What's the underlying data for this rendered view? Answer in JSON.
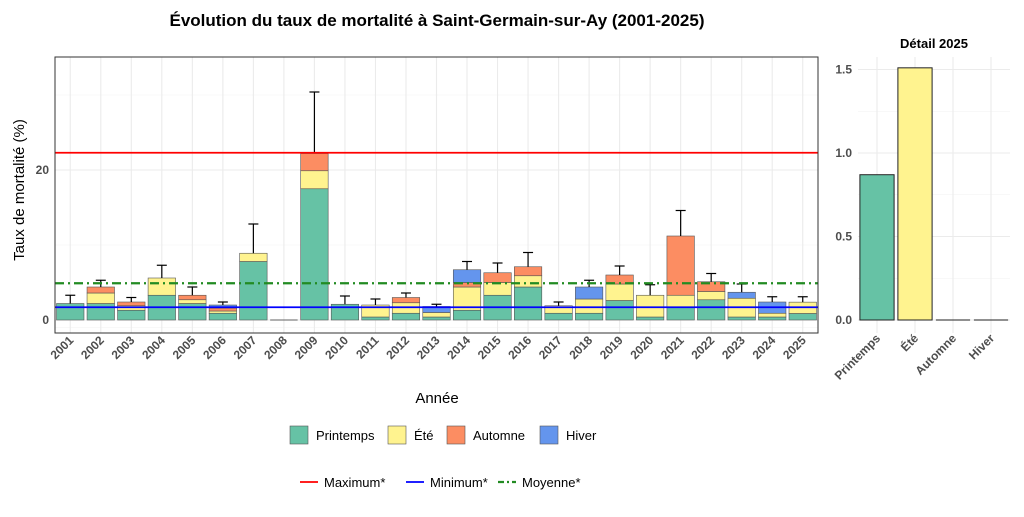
{
  "chart_data": [
    {
      "type": "bar",
      "stacked": true,
      "title": "Évolution du taux de mortalité à Saint-Germain-sur-Ay (2001-2025)",
      "xlabel": "Année",
      "ylabel": "Taux de mortalité (%)",
      "ylim": [
        -1.7,
        35
      ],
      "yticks": [
        0,
        20
      ],
      "grid": true,
      "categories": [
        "2001",
        "2002",
        "2003",
        "2004",
        "2005",
        "2006",
        "2007",
        "2008",
        "2009",
        "2010",
        "2011",
        "2012",
        "2013",
        "2014",
        "2015",
        "2016",
        "2017",
        "2018",
        "2019",
        "2020",
        "2021",
        "2022",
        "2023",
        "2024",
        "2025"
      ],
      "series": [
        {
          "name": "Printemps",
          "color": "#66c2a5",
          "values": [
            2.2,
            2.2,
            1.3,
            3.3,
            2.2,
            0.9,
            7.8,
            0,
            17.5,
            2.1,
            0.4,
            0.9,
            0.4,
            1.3,
            3.3,
            4.4,
            0.9,
            0.9,
            2.6,
            0.4,
            1.7,
            2.7,
            0.4,
            0.4,
            0.87
          ]
        },
        {
          "name": "Été",
          "color": "#fff38f",
          "values": [
            0,
            1.4,
            0.6,
            2.3,
            0.5,
            0.3,
            1.1,
            0,
            2.4,
            0,
            1.6,
            1.4,
            0.6,
            3.1,
            1.7,
            1.5,
            1.0,
            1.9,
            2.2,
            2.9,
            1.6,
            1.1,
            2.5,
            0.5,
            1.51
          ]
        },
        {
          "name": "Automne",
          "color": "#fc8d62",
          "values": [
            0,
            0.8,
            0.5,
            0,
            0.6,
            0.4,
            0,
            0,
            2.3,
            0,
            0,
            0.7,
            0,
            0.6,
            1.3,
            1.2,
            0,
            0,
            1.2,
            0,
            7.9,
            1.3,
            0,
            0,
            0
          ]
        },
        {
          "name": "Hiver",
          "color": "#6495ed",
          "values": [
            0,
            0,
            0,
            0,
            0,
            0.4,
            0,
            0,
            0,
            0,
            0,
            0,
            0.8,
            1.7,
            0,
            0,
            0,
            1.6,
            0,
            0,
            0,
            0,
            0.8,
            1.5,
            0
          ]
        }
      ],
      "error_upper": [
        3.3,
        5.3,
        3.0,
        7.3,
        4.4,
        2.4,
        12.8,
        0,
        30.4,
        3.2,
        2.8,
        3.6,
        2.1,
        7.8,
        7.6,
        9.0,
        2.4,
        5.3,
        7.2,
        4.7,
        14.6,
        6.2,
        4.8,
        3.1,
        3.1
      ],
      "reference_lines": [
        {
          "name": "Maximum*",
          "value": 22.3,
          "color": "#ff0000",
          "style": "solid"
        },
        {
          "name": "Minimum*",
          "value": 1.7,
          "color": "#0000ff",
          "style": "solid"
        },
        {
          "name": "Moyenne*",
          "value": 4.9,
          "color": "#228b22",
          "style": "dotdash"
        }
      ],
      "legend": {
        "placement": "bottom",
        "fill_items": [
          "Printemps",
          "Été",
          "Automne",
          "Hiver"
        ],
        "line_items": [
          "Maximum*",
          "Minimum*",
          "Moyenne*"
        ]
      }
    },
    {
      "type": "bar",
      "title": "Détail 2025",
      "categories": [
        "Printemps",
        "Été",
        "Automne",
        "Hiver"
      ],
      "values": [
        0.87,
        1.51,
        0,
        0
      ],
      "colors": [
        "#66c2a5",
        "#fff38f",
        "#fc8d62",
        "#6495ed"
      ],
      "ylim": [
        0,
        1.58
      ],
      "yticks": [
        "0.0",
        "0.5",
        "1.0",
        "1.5"
      ],
      "grid": true
    }
  ]
}
